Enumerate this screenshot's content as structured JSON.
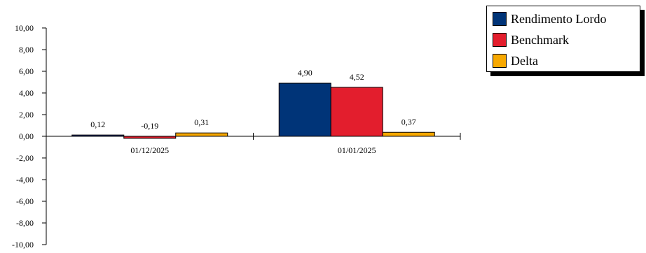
{
  "chart_data": {
    "type": "bar",
    "categories": [
      "01/12/2025",
      "01/01/2025"
    ],
    "series": [
      {
        "name": "Rendimento Lordo",
        "values": [
          0.12,
          4.9
        ],
        "labels": [
          "0,12",
          "4,90"
        ],
        "color": "#003478"
      },
      {
        "name": "Benchmark",
        "values": [
          -0.19,
          4.52
        ],
        "labels": [
          "-0,19",
          "4,52"
        ],
        "color": "#e31e2d"
      },
      {
        "name": "Delta",
        "values": [
          0.31,
          0.37
        ],
        "labels": [
          "0,31",
          "0,37"
        ],
        "color": "#f7a800"
      }
    ],
    "ylim": [
      -10,
      10
    ],
    "yticks": [
      10,
      8,
      6,
      4,
      2,
      0,
      -2,
      -4,
      -6,
      -8,
      -10
    ],
    "ytick_labels": [
      "10,00",
      "8,00",
      "6,00",
      "4,00",
      "2,00",
      "0,00",
      "-2,00",
      "-4,00",
      "-6,00",
      "-8,00",
      "-10,00"
    ],
    "title": "",
    "xlabel": "",
    "ylabel": "",
    "grid": false,
    "legend_position": "top-right"
  }
}
